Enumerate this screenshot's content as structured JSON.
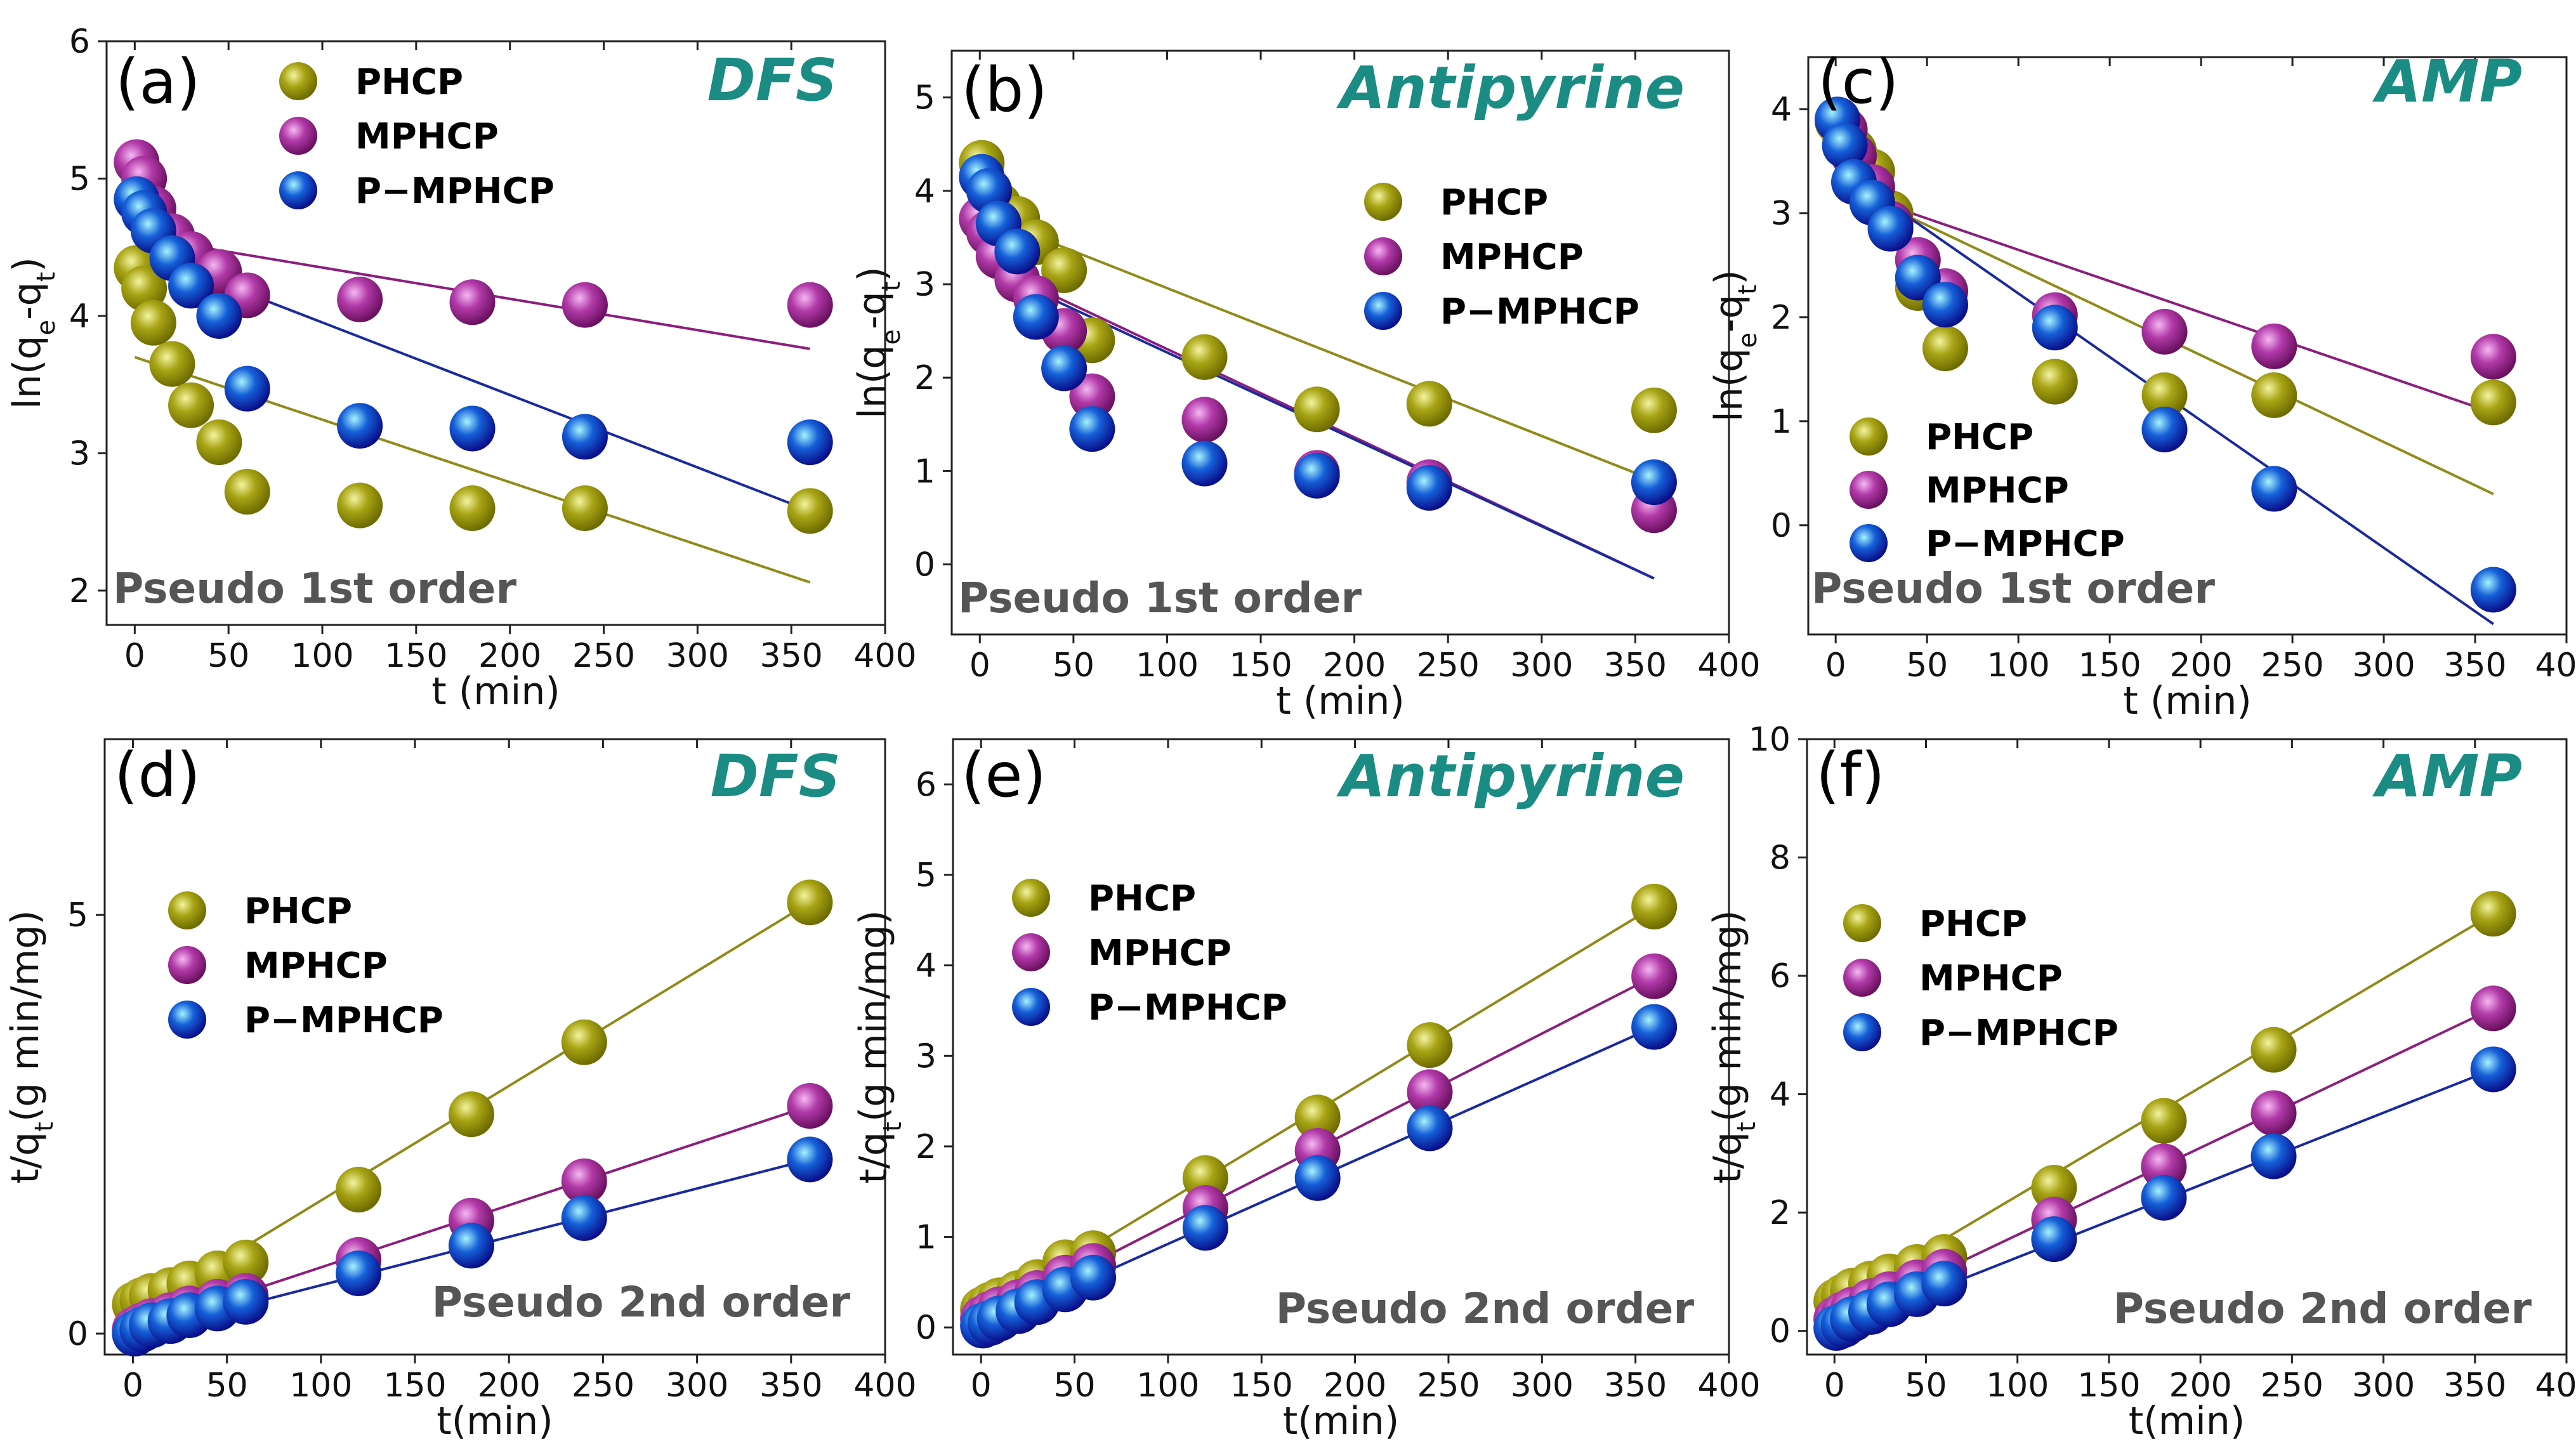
{
  "series_styles": {
    "PHCP": {
      "light": "#f4f4a0",
      "dark": "#6e6c00",
      "base": "#a8a415",
      "line": "#8f8b1a"
    },
    "MPHCP": {
      "light": "#f6b8f2",
      "dark": "#6a1060",
      "base": "#b13aa8",
      "line": "#8b1f7e"
    },
    "P-MPHCP": {
      "light": "#a6f4ff",
      "dark": "#0a0f8a",
      "base": "#1560d8",
      "line": "#1a2aa0"
    }
  },
  "legend_labels": [
    "PHCP",
    "MPHCP",
    "P−MPHCP"
  ],
  "chart_data": [
    {
      "id": "a",
      "type": "scatter",
      "panel_label": "(a)",
      "title": "DFS",
      "model": "Pseudo 1st order",
      "xlabel": "t (min)",
      "ylabel": "ln(q",
      "xlim": [
        -15,
        400
      ],
      "ylim": [
        1.75,
        6
      ],
      "xticks": [
        0,
        50,
        100,
        150,
        200,
        250,
        300,
        350,
        400
      ],
      "yticks": [
        2,
        3,
        4,
        5,
        6
      ],
      "series": [
        {
          "name": "PHCP",
          "x": [
            1,
            5,
            10,
            20,
            30,
            45,
            60,
            120,
            180,
            240,
            360
          ],
          "y": [
            4.35,
            4.2,
            3.95,
            3.65,
            3.35,
            3.08,
            2.72,
            2.62,
            2.6,
            2.6,
            2.58
          ],
          "fit": [
            [
              0,
              3.7
            ],
            [
              360,
              2.06
            ]
          ]
        },
        {
          "name": "MPHCP",
          "x": [
            1,
            5,
            10,
            20,
            30,
            45,
            60,
            120,
            180,
            240,
            360
          ],
          "y": [
            5.12,
            5.0,
            4.78,
            4.58,
            4.45,
            4.32,
            4.15,
            4.12,
            4.1,
            4.08,
            4.08
          ],
          "fit": [
            [
              0,
              4.58
            ],
            [
              360,
              3.76
            ]
          ]
        },
        {
          "name": "P-MPHCP",
          "x": [
            1,
            5,
            10,
            20,
            30,
            45,
            60,
            120,
            180,
            240,
            360
          ],
          "y": [
            4.85,
            4.75,
            4.62,
            4.42,
            4.22,
            4.0,
            3.47,
            3.2,
            3.18,
            3.12,
            3.08
          ],
          "fit": [
            [
              0,
              4.48
            ],
            [
              360,
              2.58
            ]
          ]
        }
      ]
    },
    {
      "id": "b",
      "type": "scatter",
      "panel_label": "(b)",
      "title": "Antipyrine",
      "model": "Pseudo 1st order",
      "xlabel": "t (min)",
      "ylabel": "ln(q",
      "xlim": [
        -15,
        400
      ],
      "ylim": [
        -0.75,
        5.5
      ],
      "xticks": [
        0,
        50,
        100,
        150,
        200,
        250,
        300,
        350,
        400
      ],
      "yticks": [
        0,
        1,
        2,
        3,
        4,
        5
      ],
      "series": [
        {
          "name": "PHCP",
          "x": [
            1,
            5,
            10,
            20,
            30,
            45,
            60,
            120,
            180,
            240,
            360
          ],
          "y": [
            4.3,
            4.0,
            3.85,
            3.7,
            3.45,
            3.15,
            2.4,
            2.22,
            1.66,
            1.72,
            1.65
          ],
          "fit": [
            [
              0,
              3.75
            ],
            [
              360,
              0.9
            ]
          ]
        },
        {
          "name": "MPHCP",
          "x": [
            1,
            5,
            10,
            20,
            30,
            45,
            60,
            120,
            180,
            240,
            360
          ],
          "y": [
            3.7,
            3.55,
            3.3,
            3.05,
            2.85,
            2.5,
            1.8,
            1.55,
            0.98,
            0.88,
            0.58
          ],
          "fit": [
            [
              0,
              3.25
            ],
            [
              360,
              -0.15
            ]
          ]
        },
        {
          "name": "P-MPHCP",
          "x": [
            1,
            5,
            10,
            20,
            30,
            45,
            60,
            120,
            180,
            240,
            360
          ],
          "y": [
            4.15,
            4.0,
            3.65,
            3.35,
            2.65,
            2.1,
            1.45,
            1.08,
            0.95,
            0.82,
            0.88
          ],
          "fit": [
            [
              0,
              3.2
            ],
            [
              360,
              -0.15
            ]
          ]
        }
      ]
    },
    {
      "id": "c",
      "type": "scatter",
      "panel_label": "(c)",
      "title": "AMP",
      "model": "Pseudo 1st order",
      "xlabel": "t (min)",
      "ylabel": "ln(q",
      "xlim": [
        -15,
        400
      ],
      "ylim": [
        -1.05,
        4.5
      ],
      "xticks": [
        0,
        50,
        100,
        150,
        200,
        250,
        300,
        350,
        400
      ],
      "yticks": [
        0,
        1,
        2,
        3,
        4
      ],
      "series": [
        {
          "name": "PHCP",
          "x": [
            1,
            5,
            10,
            20,
            30,
            45,
            60,
            120,
            180,
            240,
            360
          ],
          "y": [
            3.88,
            3.75,
            3.6,
            3.4,
            3.0,
            2.28,
            1.7,
            1.38,
            1.25,
            1.25,
            1.18
          ],
          "fit": [
            [
              0,
              3.3
            ],
            [
              360,
              0.3
            ]
          ]
        },
        {
          "name": "MPHCP",
          "x": [
            1,
            5,
            10,
            20,
            30,
            45,
            60,
            120,
            180,
            240,
            360
          ],
          "y": [
            3.9,
            3.8,
            3.55,
            3.25,
            2.9,
            2.55,
            2.25,
            2.02,
            1.86,
            1.72,
            1.62
          ],
          "fit": [
            [
              0,
              3.25
            ],
            [
              360,
              1.08
            ]
          ]
        },
        {
          "name": "P-MPHCP",
          "x": [
            1,
            5,
            10,
            20,
            30,
            45,
            60,
            120,
            180,
            240,
            360
          ],
          "y": [
            3.9,
            3.65,
            3.3,
            3.1,
            2.85,
            2.38,
            2.12,
            1.9,
            0.92,
            0.35,
            -0.62
          ],
          "fit": [
            [
              0,
              3.45
            ],
            [
              360,
              -0.95
            ]
          ]
        }
      ]
    },
    {
      "id": "d",
      "type": "scatter",
      "panel_label": "(d)",
      "title": "DFS",
      "model": "Pseudo 2nd order",
      "xlabel": "t(min)",
      "ylabel": "t/q",
      "xlim": [
        -15,
        400
      ],
      "ylim": [
        -0.25,
        7.1
      ],
      "xticks": [
        0,
        50,
        100,
        150,
        200,
        250,
        300,
        350,
        400
      ],
      "yticks": [
        0,
        5
      ],
      "series": [
        {
          "name": "PHCP",
          "x": [
            1,
            5,
            10,
            20,
            30,
            45,
            60,
            120,
            180,
            240,
            360
          ],
          "y": [
            0.35,
            0.4,
            0.45,
            0.52,
            0.6,
            0.72,
            0.85,
            1.72,
            2.62,
            3.48,
            5.15
          ],
          "fit": [
            [
              0,
              0.22
            ],
            [
              360,
              5.15
            ]
          ]
        },
        {
          "name": "MPHCP",
          "x": [
            1,
            5,
            10,
            20,
            30,
            45,
            60,
            120,
            180,
            240,
            360
          ],
          "y": [
            0.05,
            0.1,
            0.15,
            0.22,
            0.3,
            0.38,
            0.45,
            0.88,
            1.35,
            1.82,
            2.72
          ],
          "fit": [
            [
              0,
              0.05
            ],
            [
              360,
              2.72
            ]
          ]
        },
        {
          "name": "P-MPHCP",
          "x": [
            1,
            5,
            10,
            20,
            30,
            45,
            60,
            120,
            180,
            240,
            360
          ],
          "y": [
            0.0,
            0.05,
            0.1,
            0.15,
            0.22,
            0.3,
            0.38,
            0.72,
            1.05,
            1.38,
            2.08
          ],
          "fit": [
            [
              0,
              0.0
            ],
            [
              360,
              2.08
            ]
          ]
        }
      ]
    },
    {
      "id": "e",
      "type": "scatter",
      "panel_label": "(e)",
      "title": "Antipyrine",
      "model": "Pseudo 2nd order",
      "xlabel": "t(min)",
      "ylabel": "t/q",
      "xlim": [
        -15,
        400
      ],
      "ylim": [
        -0.3,
        6.5
      ],
      "xticks": [
        0,
        50,
        100,
        150,
        200,
        250,
        300,
        350,
        400
      ],
      "yticks": [
        0,
        1,
        2,
        3,
        4,
        5,
        6
      ],
      "series": [
        {
          "name": "PHCP",
          "x": [
            1,
            5,
            10,
            20,
            30,
            45,
            60,
            120,
            180,
            240,
            360
          ],
          "y": [
            0.2,
            0.25,
            0.3,
            0.38,
            0.5,
            0.72,
            0.82,
            1.65,
            2.32,
            3.12,
            4.65
          ],
          "fit": [
            [
              0,
              0.15
            ],
            [
              360,
              4.65
            ]
          ]
        },
        {
          "name": "MPHCP",
          "x": [
            1,
            5,
            10,
            20,
            30,
            45,
            60,
            120,
            180,
            240,
            360
          ],
          "y": [
            0.1,
            0.15,
            0.2,
            0.28,
            0.38,
            0.55,
            0.68,
            1.32,
            1.95,
            2.6,
            3.88
          ],
          "fit": [
            [
              0,
              0.08
            ],
            [
              360,
              3.88
            ]
          ]
        },
        {
          "name": "P-MPHCP",
          "x": [
            1,
            5,
            10,
            20,
            30,
            45,
            60,
            120,
            180,
            240,
            360
          ],
          "y": [
            0.02,
            0.05,
            0.1,
            0.18,
            0.28,
            0.42,
            0.55,
            1.1,
            1.65,
            2.2,
            3.32
          ],
          "fit": [
            [
              0,
              0.0
            ],
            [
              360,
              3.32
            ]
          ]
        }
      ]
    },
    {
      "id": "f",
      "type": "scatter",
      "panel_label": "(f)",
      "title": "AMP",
      "model": "Pseudo 2nd order",
      "xlabel": "t(min)",
      "ylabel": "t/q",
      "xlim": [
        -15,
        400
      ],
      "ylim": [
        -0.4,
        10
      ],
      "xticks": [
        0,
        50,
        100,
        150,
        200,
        250,
        300,
        350,
        400
      ],
      "yticks": [
        0,
        2,
        4,
        6,
        8,
        10
      ],
      "series": [
        {
          "name": "PHCP",
          "x": [
            1,
            5,
            10,
            20,
            30,
            45,
            60,
            120,
            180,
            240,
            360
          ],
          "y": [
            0.5,
            0.58,
            0.68,
            0.8,
            0.92,
            1.08,
            1.25,
            2.42,
            3.55,
            4.75,
            7.05
          ],
          "fit": [
            [
              0,
              0.45
            ],
            [
              360,
              7.05
            ]
          ]
        },
        {
          "name": "MPHCP",
          "x": [
            1,
            5,
            10,
            20,
            30,
            45,
            60,
            120,
            180,
            240,
            360
          ],
          "y": [
            0.2,
            0.28,
            0.36,
            0.5,
            0.62,
            0.82,
            1.0,
            1.88,
            2.78,
            3.68,
            5.45
          ],
          "fit": [
            [
              0,
              0.15
            ],
            [
              360,
              5.45
            ]
          ]
        },
        {
          "name": "P-MPHCP",
          "x": [
            1,
            5,
            10,
            20,
            30,
            45,
            60,
            120,
            180,
            240,
            360
          ],
          "y": [
            0.05,
            0.1,
            0.2,
            0.32,
            0.45,
            0.62,
            0.8,
            1.55,
            2.25,
            2.95,
            4.42
          ],
          "fit": [
            [
              0,
              0.02
            ],
            [
              360,
              4.42
            ]
          ]
        }
      ]
    }
  ]
}
